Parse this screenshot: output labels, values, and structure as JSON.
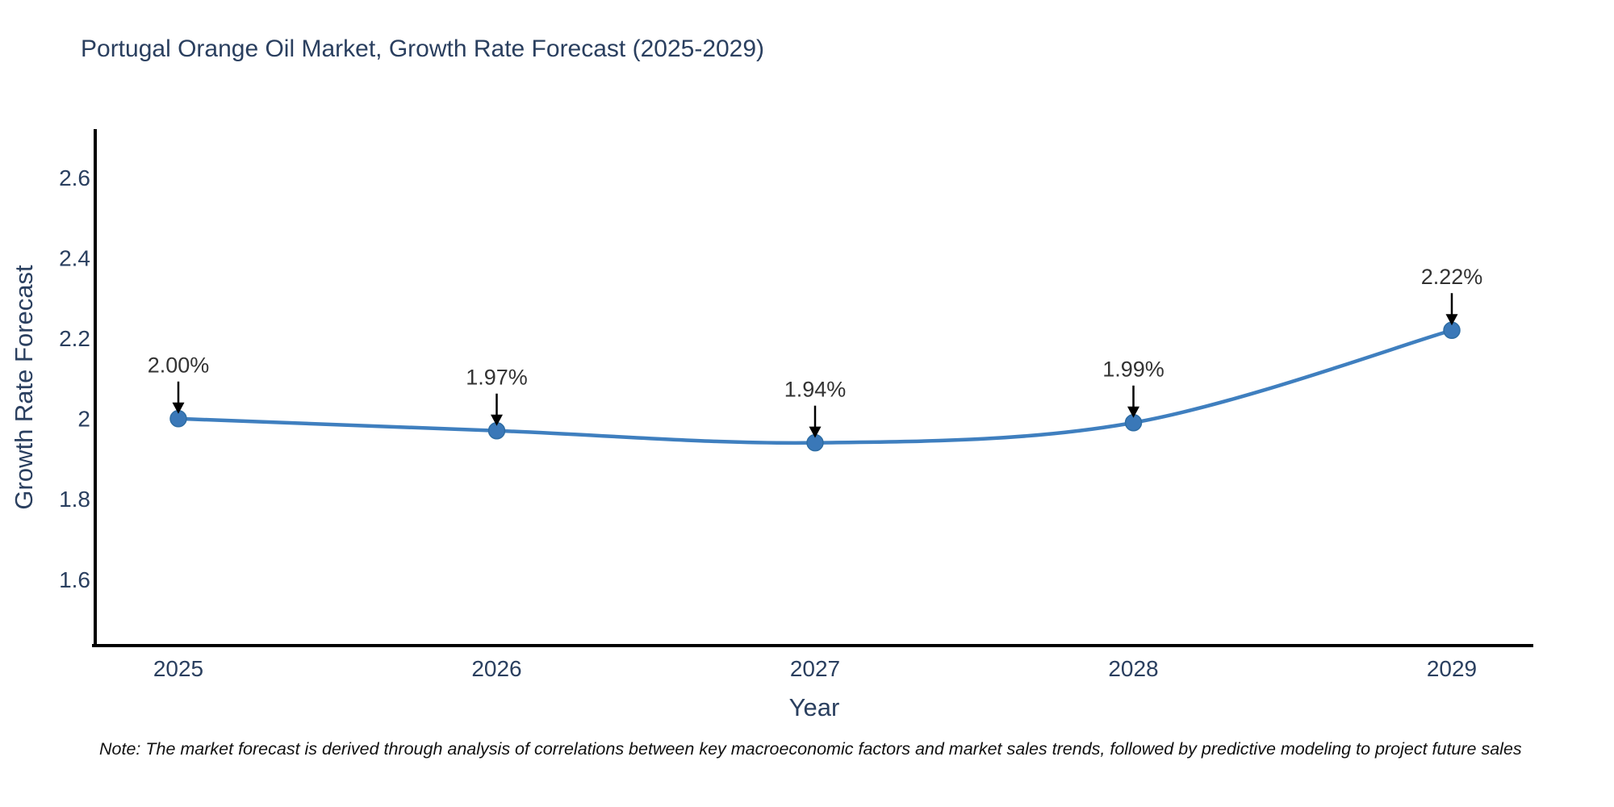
{
  "chart_data": {
    "type": "line",
    "title": "Portugal Orange Oil Market, Growth Rate Forecast (2025-2029)",
    "xlabel": "Year",
    "ylabel": "Growth Rate Forecast",
    "x": [
      2025,
      2026,
      2027,
      2028,
      2029
    ],
    "y": [
      2.0,
      1.97,
      1.94,
      1.99,
      2.22
    ],
    "point_labels": [
      "2.00%",
      "1.97%",
      "1.94%",
      "1.99%",
      "2.22%"
    ],
    "x_tick_labels": [
      "2025",
      "2026",
      "2027",
      "2028",
      "2029"
    ],
    "y_tick_values": [
      1.6,
      1.8,
      2,
      2.2,
      2.4,
      2.6
    ],
    "y_tick_labels": [
      "1.6",
      "1.8",
      "2",
      "2.2",
      "2.4",
      "2.6"
    ],
    "ylim": [
      1.44,
      2.72
    ],
    "grid": false,
    "legend": "none",
    "line_shape": "spline",
    "colors": {
      "line": "#3f7fbf",
      "marker": "#3a78b8",
      "marker_edge": "#2e6da4",
      "annotation_text": "#333333",
      "arrow": "#000000",
      "axis_line": "#000000",
      "tick_text": "#2a3f5f",
      "title_text": "#2a3f5f"
    },
    "note": "Note: The market forecast is derived through analysis of correlations between key macroeconomic factors and market sales trends, followed by predictive modeling to project future sales"
  }
}
